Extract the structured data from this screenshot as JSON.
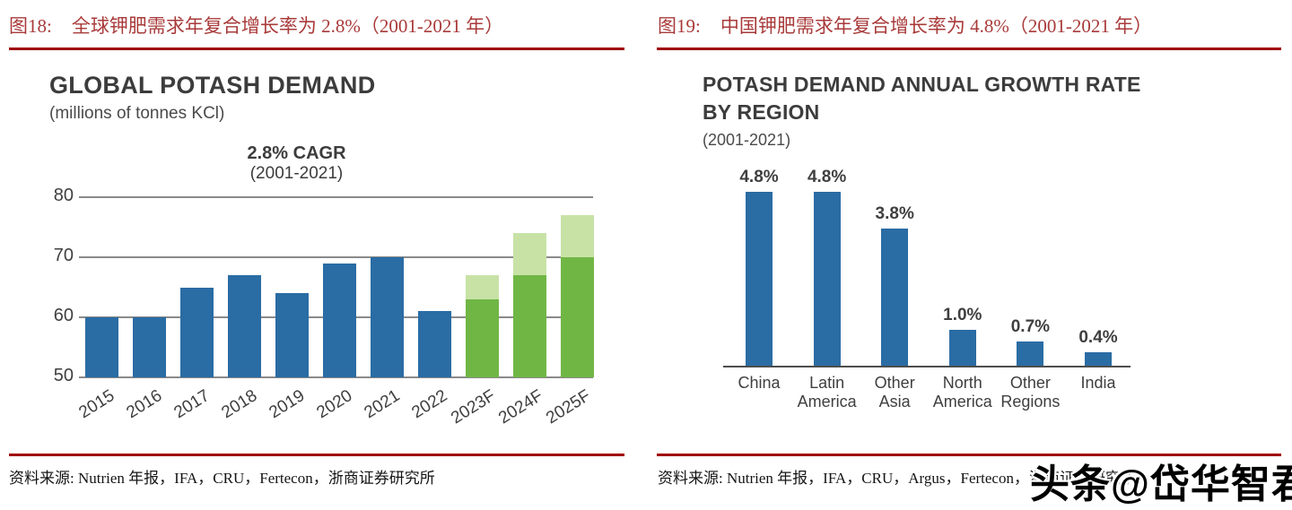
{
  "panels": [
    {
      "figure_label": "图18:",
      "figure_title": "全球钾肥需求年复合增长率为 2.8%（2001-2021 年）",
      "source": "资料来源: Nutrien 年报，IFA，CRU，Fertecon，浙商证券研究所"
    },
    {
      "figure_label": "图19:",
      "figure_title": "中国钾肥需求年复合增长率为 4.8%（2001-2021 年）",
      "source": "资料来源: Nutrien 年报，IFA，CRU，Argus，Fertecon，浙商证券研究所"
    }
  ],
  "watermark": "头条@岱华智君",
  "colors": {
    "figure_title_red": "#A93A3A",
    "rule_red": "#A00000",
    "bar_blue": "#2A6CA4",
    "bar_green": "#70B645",
    "bar_green_light": "#C8E2A6",
    "gridline_gray": "#8A8A8A",
    "axis_dark": "#4D4D4D",
    "chart_text": "#3F3F3F"
  },
  "chart_data": [
    {
      "type": "bar",
      "title": "GLOBAL POTASH DEMAND",
      "subtitle": "(millions of tonnes KCl)",
      "annotation": {
        "line1": "2.8% CAGR",
        "line2": "(2001-2021)"
      },
      "xlabel": "",
      "ylabel": "millions of tonnes KCl",
      "ylim": [
        50,
        80
      ],
      "yticks": [
        50,
        60,
        70,
        80
      ],
      "grid": "horizontal",
      "legend": "none",
      "note": "2023F-2025F are stacked forecast bars: solid green = low value, light green cap up to high value",
      "bars": [
        {
          "label": "2015",
          "value": 60,
          "series": "actual"
        },
        {
          "label": "2016",
          "value": 60,
          "series": "actual"
        },
        {
          "label": "2017",
          "value": 65,
          "series": "actual"
        },
        {
          "label": "2018",
          "value": 67,
          "series": "actual"
        },
        {
          "label": "2019",
          "value": 64,
          "series": "actual"
        },
        {
          "label": "2020",
          "value": 69,
          "series": "actual"
        },
        {
          "label": "2021",
          "value": 70,
          "series": "actual"
        },
        {
          "label": "2022",
          "value": 61,
          "series": "actual"
        },
        {
          "label": "2023F",
          "value": 67,
          "solid": 63,
          "series": "forecast"
        },
        {
          "label": "2024F",
          "value": 74,
          "solid": 67,
          "series": "forecast"
        },
        {
          "label": "2025F",
          "value": 77,
          "solid": 70,
          "series": "forecast"
        }
      ]
    },
    {
      "type": "bar",
      "title": "POTASH DEMAND ANNUAL GROWTH RATE\nBY REGION",
      "subtitle": "(2001-2021)",
      "categories": [
        "China",
        "Latin\nAmerica",
        "Other\nAsia",
        "North\nAmerica",
        "Other\nRegions",
        "India"
      ],
      "values": [
        4.8,
        4.8,
        3.8,
        1.0,
        0.7,
        0.4
      ],
      "value_labels": [
        "4.8%",
        "4.8%",
        "3.8%",
        "1.0%",
        "0.7%",
        "0.4%"
      ],
      "ylim": [
        0,
        5
      ],
      "grid": "none",
      "legend": "none"
    }
  ]
}
